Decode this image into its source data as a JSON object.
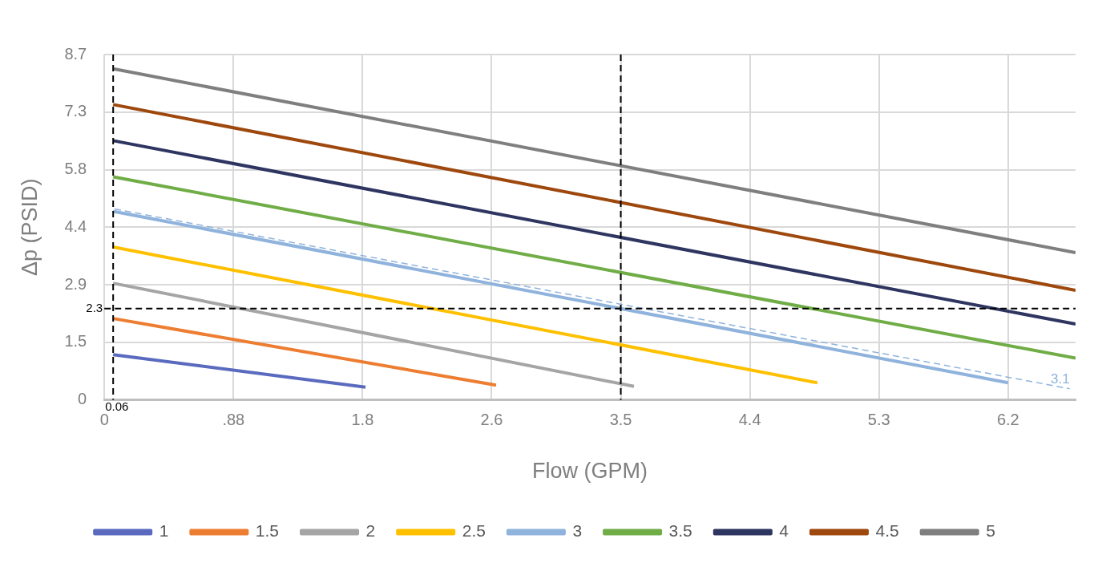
{
  "chart_data": {
    "type": "line",
    "xlabel": "Flow (GPM)",
    "ylabel": "Δp (PSID)",
    "xlim": [
      0,
      6.62
    ],
    "xticks": [
      0,
      {
        "value": 0.88,
        "label": ".88"
      },
      {
        "value": 1.76,
        "label": "1.8"
      },
      {
        "value": 2.64,
        "label": "2.6"
      },
      {
        "value": 3.52,
        "label": "3.5"
      },
      4.4,
      {
        "value": 5.28,
        "label": "5.3"
      },
      {
        "value": 6.16,
        "label": "6.2"
      }
    ],
    "ylim": [
      0,
      8.7
    ],
    "yticks": [
      0,
      {
        "value": 1.45,
        "label": "1.5"
      },
      2.9,
      {
        "value": 4.35,
        "label": "4.4"
      },
      5.8,
      {
        "value": 7.25,
        "label": "7.3"
      },
      8.7
    ],
    "grid": true,
    "legend": "bottom",
    "marker": "none",
    "line_style": "solid",
    "series": [
      {
        "name": "1",
        "color": "#5a6bbf",
        "x": [
          0.06,
          1.78
        ],
        "values": [
          1.14,
          0.32
        ]
      },
      {
        "name": "1.5",
        "color": "#ed7d31",
        "x": [
          0.06,
          2.67
        ],
        "values": [
          2.05,
          0.37
        ]
      },
      {
        "name": "2",
        "color": "#a5a5a5",
        "x": [
          0.06,
          3.61
        ],
        "values": [
          2.94,
          0.34
        ]
      },
      {
        "name": "2.5",
        "color": "#ffc000",
        "x": [
          0.06,
          4.86
        ],
        "values": [
          3.85,
          0.43
        ]
      },
      {
        "name": "3",
        "color": "#8fb3dc",
        "x": [
          0.06,
          6.16
        ],
        "values": [
          4.75,
          0.43
        ]
      },
      {
        "name": "3.5",
        "color": "#70ad47",
        "x": [
          0.06,
          6.62
        ],
        "values": [
          5.62,
          1.05
        ]
      },
      {
        "name": "4",
        "color": "#2e3560",
        "x": [
          0.06,
          6.62
        ],
        "values": [
          6.53,
          1.91
        ]
      },
      {
        "name": "4.5",
        "color": "#9e480e",
        "x": [
          0.06,
          6.62
        ],
        "values": [
          7.44,
          2.76
        ]
      },
      {
        "name": "5",
        "color": "#7f7f7f",
        "x": [
          0.06,
          6.62
        ],
        "values": [
          8.34,
          3.71
        ]
      },
      {
        "color": "#8fb3dc",
        "line_style": "dashed",
        "x": [
          0.07,
          6.58
        ],
        "values": [
          4.81,
          0.28
        ]
      }
    ],
    "ref_lines": [
      {
        "axis": "x",
        "value": 0.06,
        "label": "0.06",
        "color": "#000000",
        "line_style": "dashed"
      },
      {
        "axis": "x",
        "value": 3.52,
        "color": "#000000",
        "line_style": "dashed"
      },
      {
        "axis": "y",
        "value": 2.3,
        "label": "2.3",
        "color": "#000000",
        "line_style": "dashed"
      }
    ],
    "annotations": [
      {
        "text": "3.1",
        "x": 6.58,
        "y": 0.28
      }
    ]
  }
}
